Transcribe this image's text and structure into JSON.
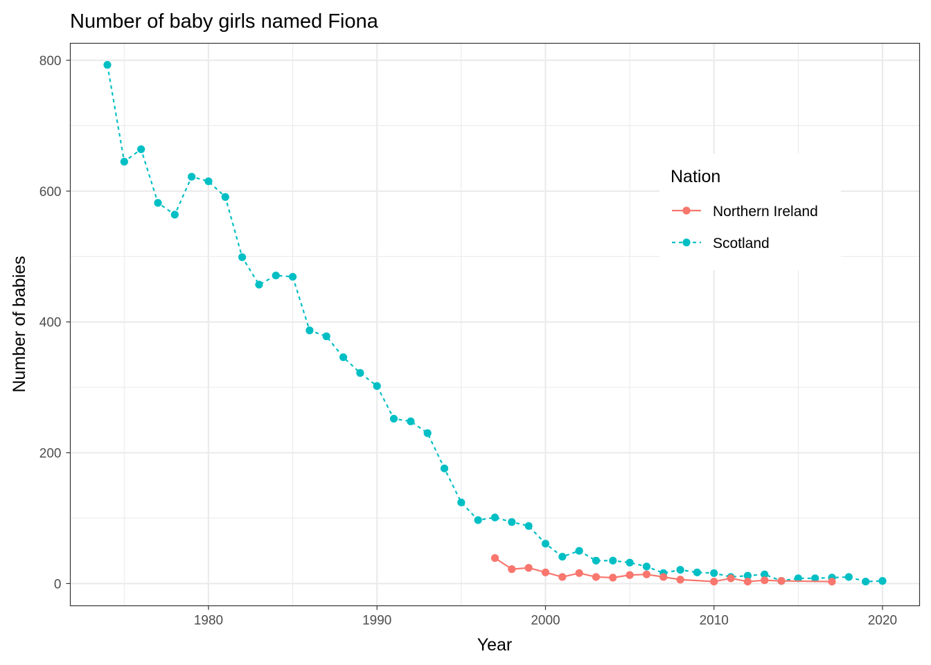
{
  "chart_data": {
    "type": "line",
    "title": "Number of baby girls named Fiona",
    "xlabel": "Year",
    "ylabel": "Number of babies",
    "xlim": [
      1971.8,
      2022.2
    ],
    "ylim": [
      -34,
      826
    ],
    "xticks": [
      1980,
      1990,
      2000,
      2010,
      2020
    ],
    "yticks": [
      0,
      200,
      400,
      600,
      800
    ],
    "grid": true,
    "legend": {
      "title": "Nation",
      "position": "right-inset"
    },
    "series": [
      {
        "name": "Northern Ireland",
        "color": "#F8766D",
        "linestyle": "solid",
        "x": [
          1997,
          1998,
          1999,
          2000,
          2001,
          2002,
          2003,
          2004,
          2005,
          2006,
          2007,
          2008,
          2010,
          2011,
          2012,
          2013,
          2014,
          2017
        ],
        "values": [
          39,
          22,
          24,
          17,
          10,
          16,
          10,
          9,
          13,
          14,
          10,
          6,
          3,
          8,
          3,
          5,
          4,
          3
        ]
      },
      {
        "name": "Scotland",
        "color": "#00BFC4",
        "linestyle": "dashed",
        "x": [
          1974,
          1975,
          1976,
          1977,
          1978,
          1979,
          1980,
          1981,
          1982,
          1983,
          1984,
          1985,
          1986,
          1987,
          1988,
          1989,
          1990,
          1991,
          1992,
          1993,
          1994,
          1995,
          1996,
          1997,
          1998,
          1999,
          2000,
          2001,
          2002,
          2003,
          2004,
          2005,
          2006,
          2007,
          2008,
          2009,
          2010,
          2011,
          2012,
          2013,
          2014,
          2015,
          2016,
          2017,
          2018,
          2019,
          2020
        ],
        "values": [
          793,
          645,
          664,
          582,
          564,
          622,
          615,
          591,
          499,
          457,
          471,
          469,
          387,
          378,
          346,
          322,
          302,
          252,
          248,
          230,
          176,
          124,
          97,
          101,
          94,
          88,
          61,
          41,
          50,
          35,
          35,
          32,
          26,
          16,
          21,
          17,
          16,
          10,
          12,
          14,
          4,
          8,
          8,
          9,
          10,
          3,
          4
        ]
      }
    ]
  }
}
